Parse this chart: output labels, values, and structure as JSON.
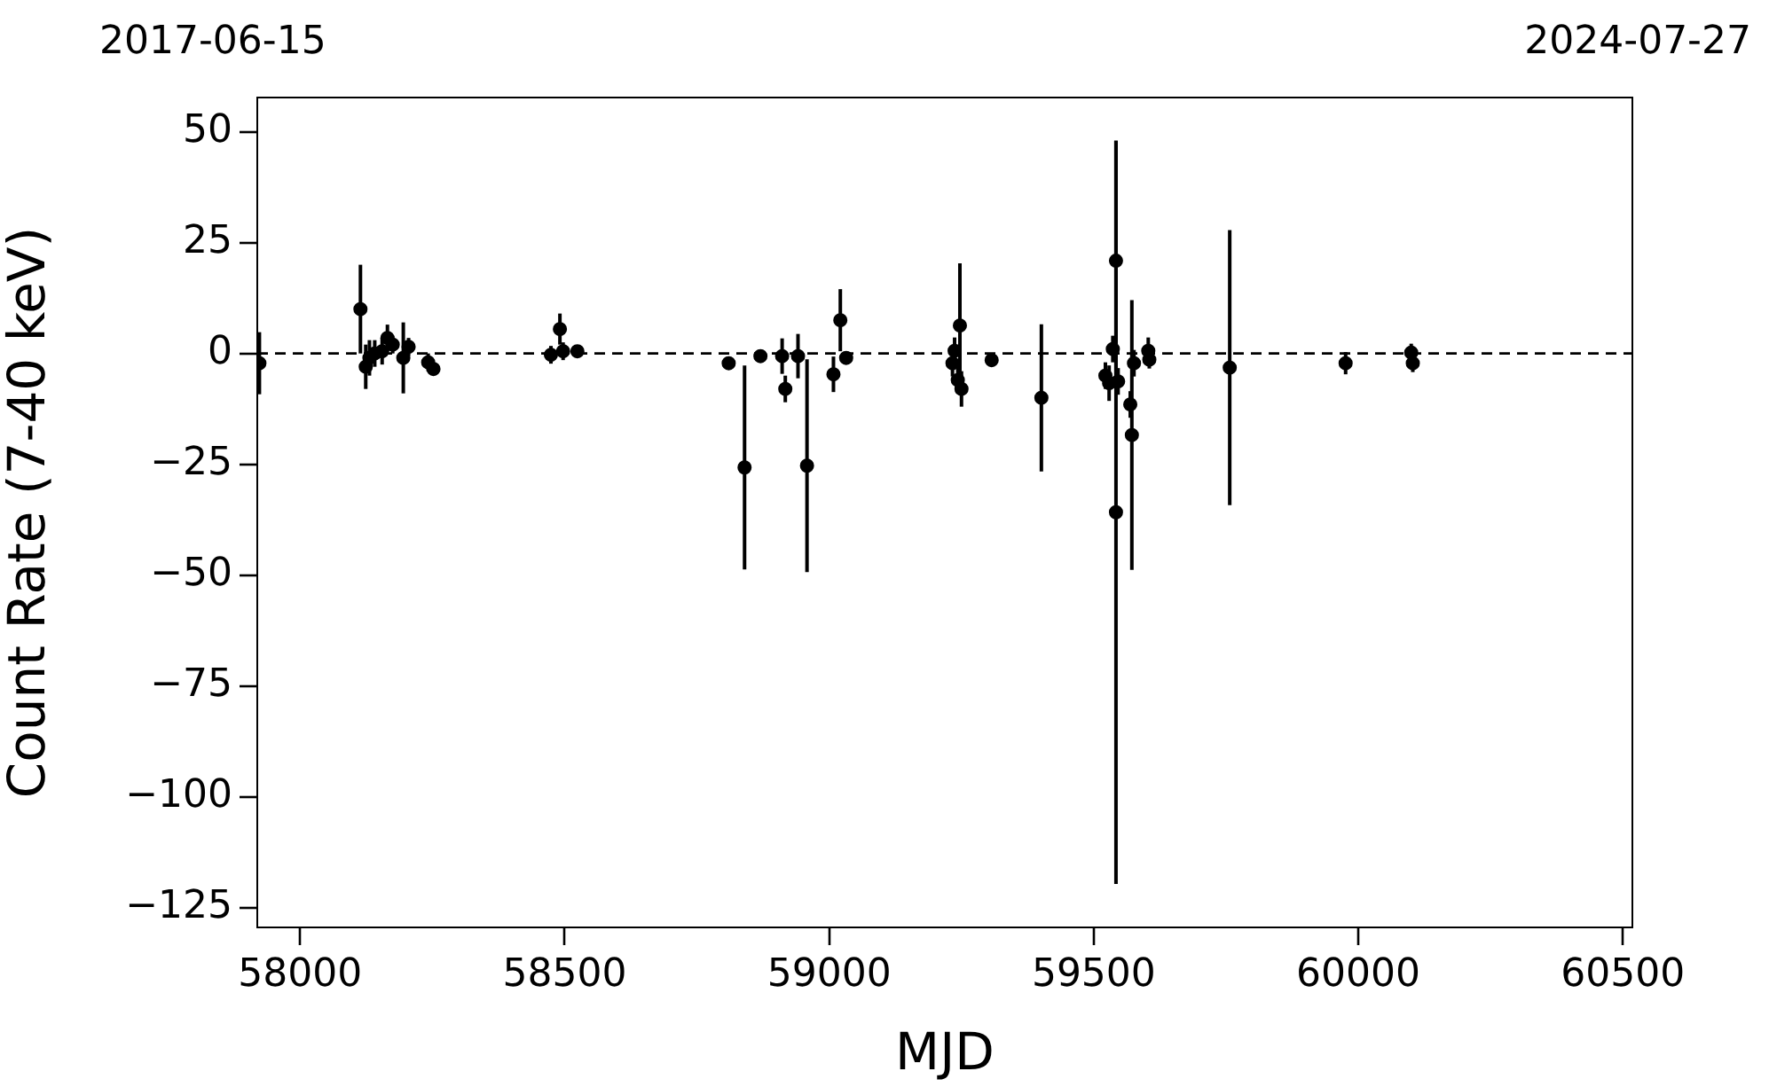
{
  "chart_data": {
    "type": "scatter",
    "xlabel": "MJD",
    "ylabel": "Count Rate (7-40 keV)",
    "annotations": [
      "2017-06-15",
      "2024-07-27"
    ],
    "x": [
      57923,
      58114,
      58124,
      58131,
      58141,
      58155,
      58165,
      58175,
      58195,
      58205,
      58242,
      58252,
      58474,
      58484,
      58491,
      58497,
      58524,
      58810,
      58840,
      58870,
      58911,
      58917,
      58941,
      58958,
      59008,
      59021,
      59032,
      59233,
      59237,
      59240,
      59243,
      59247,
      59250,
      59307,
      59401,
      59542,
      59542,
      59522,
      59529,
      59536,
      59546,
      59569,
      59572,
      59576,
      59603,
      59605,
      59757,
      59976,
      60090,
      60100,
      60103
    ],
    "values": [
      -2.2,
      10,
      -3,
      -1,
      0,
      0.5,
      3.5,
      2,
      -1,
      1.5,
      -2,
      -3.5,
      -0.3,
      null,
      5.5,
      0.5,
      0.5,
      -2.2,
      -25.7,
      -0.6,
      -0.6,
      -8,
      -0.6,
      -25.3,
      -4.7,
      7.5,
      -1,
      -2.2,
      0.6,
      null,
      -6,
      6.3,
      -8,
      -1.5,
      -10,
      20.9,
      -35.8,
      -5,
      -6.7,
      1,
      -6.3,
      -11.5,
      -18.4,
      -2.2,
      0.6,
      -1.4,
      -3.2,
      -2.2,
      null,
      0.2,
      -2.2
    ],
    "errors": [
      7,
      10,
      5,
      4,
      3,
      3,
      3,
      2,
      8,
      2,
      2,
      1,
      2,
      null,
      3.5,
      2,
      1,
      1,
      23,
      1,
      4,
      3,
      5,
      24,
      4,
      7,
      1,
      3,
      3,
      null,
      3,
      14,
      4,
      1,
      16.6,
      27,
      83.8,
      3,
      4,
      3,
      3,
      3,
      30.4,
      3,
      3,
      2,
      31,
      2.5,
      null,
      2,
      2
    ],
    "color": "#000000",
    "marker": "circle",
    "grid": false,
    "xlim": [
      57919,
      60518
    ],
    "xticks": [
      58000,
      58500,
      59000,
      59500,
      60000,
      60500
    ],
    "ylim": [
      -129.4,
      57.7
    ],
    "yticks": [
      -125,
      -100,
      -75,
      -50,
      -25,
      0,
      25,
      50
    ],
    "ref_lines": [
      {
        "axis": "y",
        "value": 0,
        "color": "#000000",
        "line_style": "dashed"
      }
    ]
  }
}
